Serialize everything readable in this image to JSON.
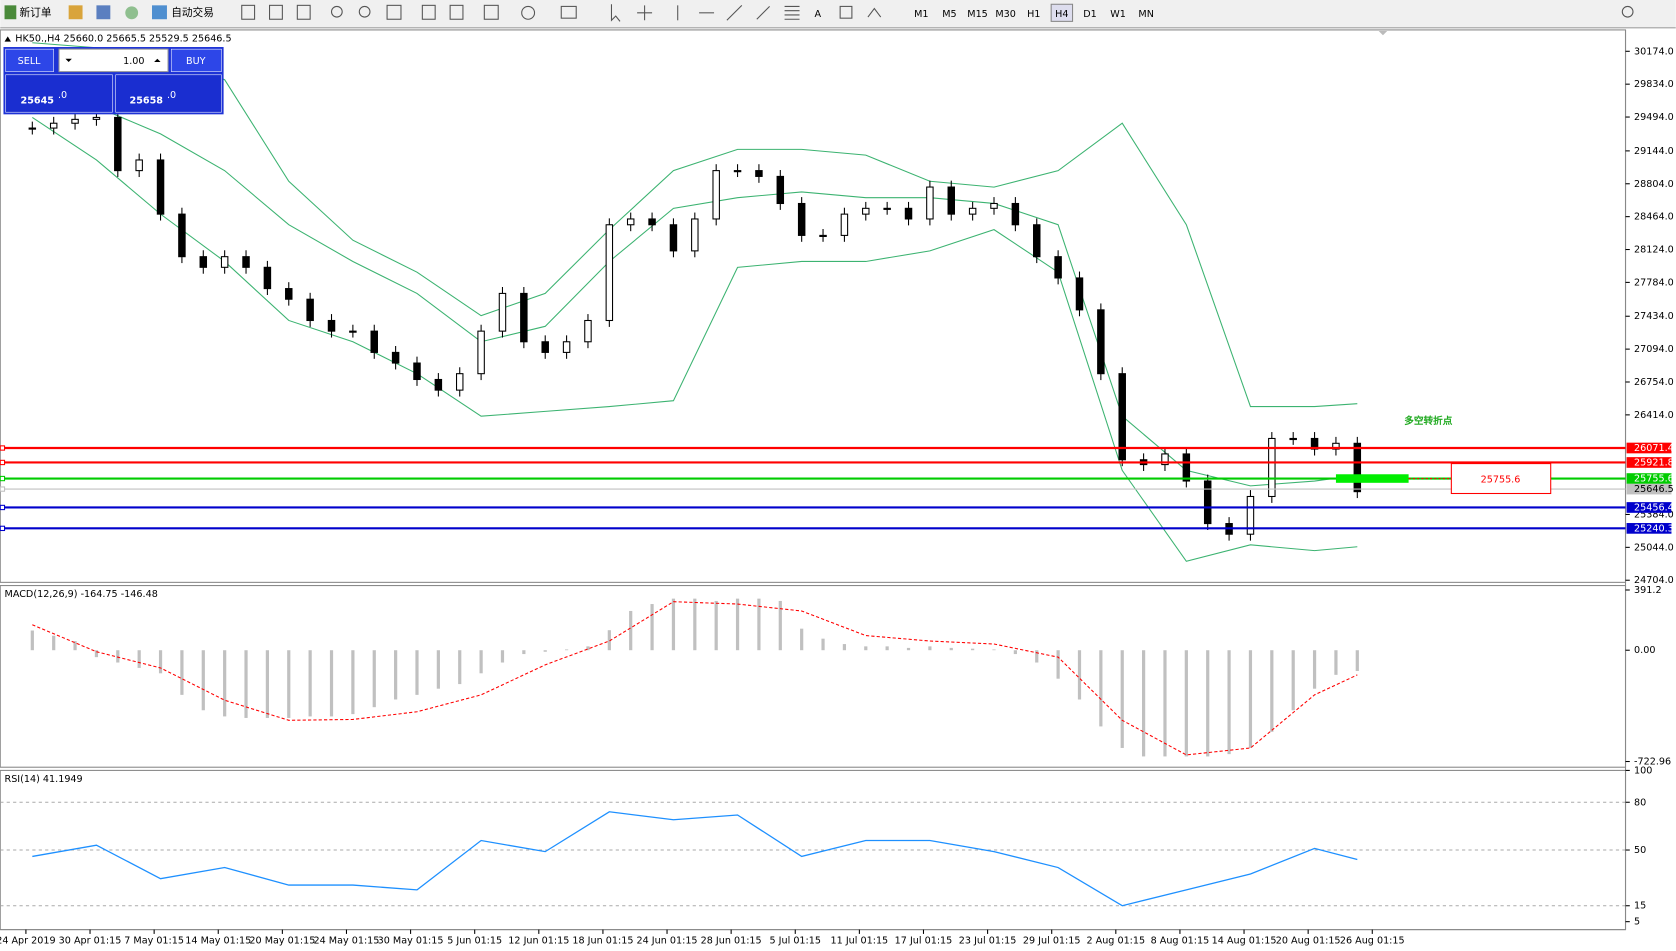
{
  "toolbar": {
    "new_order": "新订单",
    "auto_trading": "自动交易",
    "timeframes": [
      "M1",
      "M5",
      "M15",
      "M30",
      "H1",
      "H4",
      "D1",
      "W1",
      "MN"
    ],
    "active_timeframe": 5
  },
  "trade_panel": {
    "sell": "SELL",
    "buy": "BUY",
    "lots": "1.00",
    "bid_main": "25645",
    "bid_frac": ".0",
    "ask_main": "25658",
    "ask_frac": ".0"
  },
  "annotation": {
    "text": "多空转折点",
    "price_box": 25755.6
  },
  "x_axis": {
    "labels": [
      "24 Apr 2019",
      "30 Apr 01:15",
      "7 May 01:15",
      "14 May 01:15",
      "20 May 01:15",
      "24 May 01:15",
      "30 May 01:15",
      "5 Jun 01:15",
      "12 Jun 01:15",
      "18 Jun 01:15",
      "24 Jun 01:15",
      "28 Jun 01:15",
      "5 Jul 01:15",
      "11 Jul 01:15",
      "17 Jul 01:15",
      "23 Jul 01:15",
      "29 Jul 01:15",
      "2 Aug 01:15",
      "8 Aug 01:15",
      "14 Aug 01:15",
      "20 Aug 01:15",
      "26 Aug 01:15"
    ]
  },
  "chart_data": [
    {
      "type": "candlestick",
      "title": "HK50.,H4  25660.0 25665.5 25529.5 25646.5",
      "close": [
        29380,
        29430,
        29470,
        29490,
        28940,
        29050,
        28490,
        28050,
        27940,
        28050,
        27940,
        27720,
        27610,
        27390,
        27280,
        27280,
        27060,
        26950,
        26780,
        26670,
        26840,
        27280,
        27670,
        27170,
        27060,
        27170,
        27390,
        28380,
        28440,
        28380,
        28110,
        28440,
        28940,
        28940,
        28880,
        28600,
        28270,
        28270,
        28490,
        28550,
        28550,
        28440,
        28770,
        28490,
        28550,
        28600,
        28380,
        28050,
        27830,
        27500,
        26840,
        25950,
        25900,
        26010,
        25730,
        25290,
        25180,
        25570,
        26170,
        26170,
        26060,
        26120,
        25620
      ],
      "bands": {
        "color": "#3cb371",
        "x": [
          0,
          3,
          6,
          9,
          12,
          15,
          18,
          21,
          24,
          27,
          30,
          33,
          36,
          39,
          42,
          45,
          48,
          51,
          54,
          57,
          60,
          62
        ],
        "upper": [
          30262,
          30210,
          30150,
          29880,
          28830,
          28220,
          27890,
          27440,
          27670,
          28330,
          28940,
          29160,
          29160,
          29100,
          28830,
          28770,
          28940,
          29430,
          28380,
          26500,
          26500,
          26530
        ],
        "middle": [
          29880,
          29600,
          29320,
          28940,
          28380,
          28000,
          27670,
          27170,
          27330,
          28000,
          28550,
          28660,
          28720,
          28660,
          28660,
          28600,
          28380,
          26400,
          25840,
          25680,
          25730,
          25790
        ],
        "lower": [
          29490,
          29050,
          28490,
          28000,
          27390,
          27170,
          26840,
          26400,
          26450,
          26500,
          26560,
          27940,
          28000,
          28000,
          28110,
          28330,
          27890,
          25840,
          24900,
          25070,
          25010,
          25050
        ]
      },
      "levels": [
        {
          "value": 26071.4,
          "color": "#ff0000"
        },
        {
          "value": 25921.8,
          "color": "#ff0000"
        },
        {
          "value": 25755.6,
          "color": "#00cc00"
        },
        {
          "value": 25646.5,
          "color": "#c0c0c0"
        },
        {
          "value": 25456.4,
          "color": "#0000cc"
        },
        {
          "value": 25240.3,
          "color": "#0000cc"
        }
      ],
      "ylim": [
        24682,
        30395
      ],
      "yticks": [
        {
          "value": 30174,
          "label": "30174.0"
        },
        {
          "value": 29834,
          "label": "29834.0"
        },
        {
          "value": 29494,
          "label": "29494.0"
        },
        {
          "value": 29144,
          "label": "29144.0"
        },
        {
          "value": 28804,
          "label": "28804.0"
        },
        {
          "value": 28464,
          "label": "28464.0"
        },
        {
          "value": 28124,
          "label": "28124.0"
        },
        {
          "value": 27784,
          "label": "27784.0"
        },
        {
          "value": 27434,
          "label": "27434.0"
        },
        {
          "value": 27094,
          "label": "27094.0"
        },
        {
          "value": 26754,
          "label": "26754.0"
        },
        {
          "value": 26414,
          "label": "26414.0"
        },
        {
          "value": 25384,
          "label": "25384.0"
        },
        {
          "value": 25044,
          "label": "25044.0"
        },
        {
          "value": 24704,
          "label": "24704.0"
        }
      ]
    },
    {
      "type": "macd",
      "title": "MACD(12,26,9) -164.75 -146.48",
      "histogram": [
        128,
        94,
        59,
        -45,
        -80,
        -115,
        -150,
        -290,
        -390,
        -430,
        -440,
        -440,
        -440,
        -430,
        -430,
        -415,
        -370,
        -320,
        -290,
        -250,
        -220,
        -150,
        -80,
        -25,
        -10,
        5,
        25,
        130,
        255,
        300,
        335,
        335,
        320,
        335,
        335,
        320,
        140,
        75,
        40,
        25,
        25,
        15,
        25,
        15,
        10,
        5,
        -25,
        -80,
        -185,
        -320,
        -495,
        -635,
        -690,
        -690,
        -690,
        -690,
        -675,
        -635,
        -530,
        -390,
        -250,
        -160,
        -135
      ],
      "signal": {
        "color": "#ff0000",
        "x": [
          0,
          3,
          6,
          9,
          12,
          15,
          18,
          21,
          24,
          27,
          30,
          33,
          36,
          39,
          42,
          45,
          48,
          51,
          54,
          57,
          60,
          62
        ],
        "values": [
          165,
          -10,
          -115,
          -325,
          -455,
          -450,
          -400,
          -290,
          -95,
          60,
          315,
          300,
          255,
          95,
          60,
          40,
          -45,
          -455,
          -680,
          -635,
          -290,
          -160
        ]
      },
      "ylim": [
        -760,
        420
      ],
      "yticks": [
        391.2,
        {
          "value": 0,
          "label": "0.00"
        },
        -722.96
      ]
    },
    {
      "type": "line",
      "title": "RSI(14) 41.1949",
      "color": "#1e90ff",
      "x": [
        0,
        3,
        6,
        9,
        12,
        15,
        18,
        21,
        24,
        27,
        30,
        33,
        36,
        39,
        42,
        45,
        48,
        51,
        54,
        57,
        60,
        62
      ],
      "values": [
        46,
        53,
        32,
        39,
        28,
        28,
        25,
        56,
        49,
        74,
        69,
        72,
        46,
        56,
        56,
        49,
        39,
        15,
        25,
        35,
        51,
        44
      ],
      "ylim": [
        0,
        100
      ],
      "yticks": [
        100,
        80,
        50,
        15,
        5
      ]
    }
  ]
}
